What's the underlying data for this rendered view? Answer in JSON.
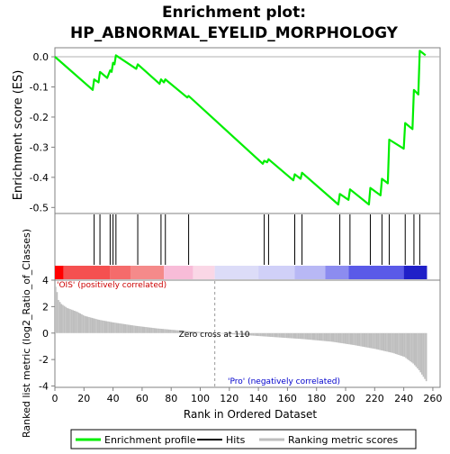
{
  "chart_data": {
    "type": "line",
    "title_line1": "Enrichment plot:",
    "title_line2": "HP_ABNORMAL_EYELID_MORPHOLOGY",
    "es_panel": {
      "ylabel": "Enrichment score (ES)",
      "ylim": [
        -0.52,
        0.03
      ],
      "yticks": [
        0.0,
        -0.1,
        -0.2,
        -0.3,
        -0.4,
        -0.5
      ],
      "ytick_labels": [
        "0.0",
        "-0.1",
        "-0.2",
        "-0.3",
        "-0.4",
        "-0.5"
      ],
      "series": [
        {
          "name": "Enrichment profile",
          "color": "#00ee00",
          "points": [
            [
              0,
              0.0
            ],
            [
              26,
              -0.11
            ],
            [
              27,
              -0.075
            ],
            [
              30,
              -0.085
            ],
            [
              31,
              -0.05
            ],
            [
              36,
              -0.07
            ],
            [
              38,
              -0.045
            ],
            [
              39,
              -0.05
            ],
            [
              40,
              -0.02
            ],
            [
              41,
              -0.025
            ],
            [
              42,
              0.005
            ],
            [
              56,
              -0.04
            ],
            [
              57,
              -0.025
            ],
            [
              72,
              -0.09
            ],
            [
              73,
              -0.075
            ],
            [
              75,
              -0.085
            ],
            [
              76,
              -0.075
            ],
            [
              91,
              -0.135
            ],
            [
              92,
              -0.13
            ],
            [
              143,
              -0.355
            ],
            [
              144,
              -0.345
            ],
            [
              146,
              -0.35
            ],
            [
              147,
              -0.34
            ],
            [
              164,
              -0.41
            ],
            [
              165,
              -0.39
            ],
            [
              169,
              -0.405
            ],
            [
              170,
              -0.385
            ],
            [
              195,
              -0.49
            ],
            [
              196,
              -0.455
            ],
            [
              202,
              -0.475
            ],
            [
              203,
              -0.44
            ],
            [
              216,
              -0.49
            ],
            [
              217,
              -0.435
            ],
            [
              224,
              -0.46
            ],
            [
              225,
              -0.405
            ],
            [
              229,
              -0.42
            ],
            [
              230,
              -0.275
            ],
            [
              240,
              -0.305
            ],
            [
              241,
              -0.22
            ],
            [
              246,
              -0.24
            ],
            [
              247,
              -0.11
            ],
            [
              250,
              -0.125
            ],
            [
              251,
              0.02
            ],
            [
              255,
              0.005
            ]
          ]
        }
      ]
    },
    "hits": {
      "color": "#000000",
      "positions": [
        27,
        31,
        38,
        40,
        42,
        57,
        73,
        76,
        92,
        144,
        147,
        165,
        170,
        196,
        203,
        217,
        225,
        230,
        241,
        247,
        251
      ]
    },
    "rank_panel": {
      "ylabel": "Ranked list metric (log2_Ratio_of_Classes)",
      "xlabel": "Rank in Ordered Dataset",
      "ylim": [
        -4.1,
        4.0
      ],
      "yticks": [
        4,
        2,
        0,
        -2,
        -4
      ],
      "ytick_labels": [
        "4",
        "2",
        "0",
        "-2",
        "-4"
      ],
      "xlim": [
        0,
        265
      ],
      "xticks": [
        0,
        20,
        40,
        60,
        80,
        100,
        120,
        140,
        160,
        180,
        200,
        220,
        240,
        260
      ],
      "xtick_labels": [
        "0",
        "20",
        "40",
        "60",
        "80",
        "100",
        "120",
        "140",
        "160",
        "180",
        "200",
        "220",
        "240",
        "260"
      ],
      "n_genes": 256,
      "zero_cross": 110,
      "zero_cross_label": "Zero cross at 110",
      "profile": [
        [
          0,
          3.5
        ],
        [
          1,
          3.1
        ],
        [
          2,
          2.5
        ],
        [
          4,
          2.2
        ],
        [
          8,
          1.9
        ],
        [
          15,
          1.6
        ],
        [
          20,
          1.3
        ],
        [
          30,
          1.0
        ],
        [
          40,
          0.8
        ],
        [
          55,
          0.55
        ],
        [
          70,
          0.35
        ],
        [
          90,
          0.15
        ],
        [
          110,
          0.0
        ],
        [
          130,
          -0.15
        ],
        [
          150,
          -0.3
        ],
        [
          170,
          -0.45
        ],
        [
          190,
          -0.65
        ],
        [
          205,
          -0.9
        ],
        [
          220,
          -1.2
        ],
        [
          232,
          -1.5
        ],
        [
          240,
          -1.8
        ],
        [
          246,
          -2.3
        ],
        [
          250,
          -2.8
        ],
        [
          253,
          -3.3
        ],
        [
          256,
          -3.8
        ]
      ],
      "bar_color": "#bebebe",
      "pos_label": "'OIS' (positively correlated)",
      "pos_color": "#cc0000",
      "neg_label": "'Pro' (negatively correlated)",
      "neg_color": "#0000cc"
    },
    "heat_strip": {
      "segments": [
        {
          "start": 0,
          "end": 6,
          "color": "#ff0000"
        },
        {
          "start": 6,
          "end": 38,
          "color": "#f55050"
        },
        {
          "start": 38,
          "end": 52,
          "color": "#f56b6b"
        },
        {
          "start": 52,
          "end": 75,
          "color": "#f58a8a"
        },
        {
          "start": 75,
          "end": 95,
          "color": "#f8bcd8"
        },
        {
          "start": 95,
          "end": 110,
          "color": "#fad7e6"
        },
        {
          "start": 110,
          "end": 140,
          "color": "#dcdcf8"
        },
        {
          "start": 140,
          "end": 165,
          "color": "#d0d0f8"
        },
        {
          "start": 165,
          "end": 186,
          "color": "#b8b8f5"
        },
        {
          "start": 186,
          "end": 202,
          "color": "#8c8cf0"
        },
        {
          "start": 202,
          "end": 240,
          "color": "#5a5ae8"
        },
        {
          "start": 240,
          "end": 256,
          "color": "#2020c8"
        }
      ]
    },
    "legend": {
      "items": [
        {
          "label": "Enrichment profile",
          "color": "#00ee00"
        },
        {
          "label": "Hits",
          "color": "#000000"
        },
        {
          "label": "Ranking metric scores",
          "color": "#bebebe"
        }
      ]
    }
  }
}
